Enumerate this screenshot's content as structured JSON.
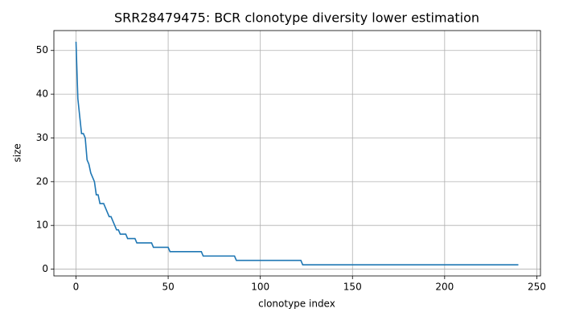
{
  "chart_data": {
    "type": "line",
    "title": "SRR28479475: BCR clonotype diversity lower estimation",
    "x_label": "clonotype index",
    "y_label": "size",
    "x": [
      0,
      1,
      2,
      3,
      4,
      5,
      6,
      7,
      8,
      9,
      10,
      11,
      12,
      13,
      15,
      16,
      17,
      18,
      19,
      20,
      21,
      22,
      23,
      24,
      27,
      28,
      32,
      33,
      41,
      42,
      50,
      51,
      68,
      69,
      86,
      87,
      122,
      123,
      240
    ],
    "values": [
      52,
      39,
      35,
      31,
      31,
      30,
      25,
      24,
      22,
      21,
      20,
      17,
      17,
      15,
      15,
      14,
      13,
      12,
      12,
      11,
      10,
      9,
      9,
      8,
      8,
      7,
      7,
      6,
      6,
      5,
      5,
      4,
      4,
      3,
      3,
      2,
      2,
      1,
      1
    ],
    "color": "#1f77b4",
    "xlim": [
      -12,
      252
    ],
    "ylim": [
      -1.55,
      54.55
    ],
    "xticks": [
      0,
      50,
      100,
      150,
      200,
      250
    ],
    "yticks": [
      0,
      10,
      20,
      30,
      40,
      50
    ],
    "grid": true
  }
}
